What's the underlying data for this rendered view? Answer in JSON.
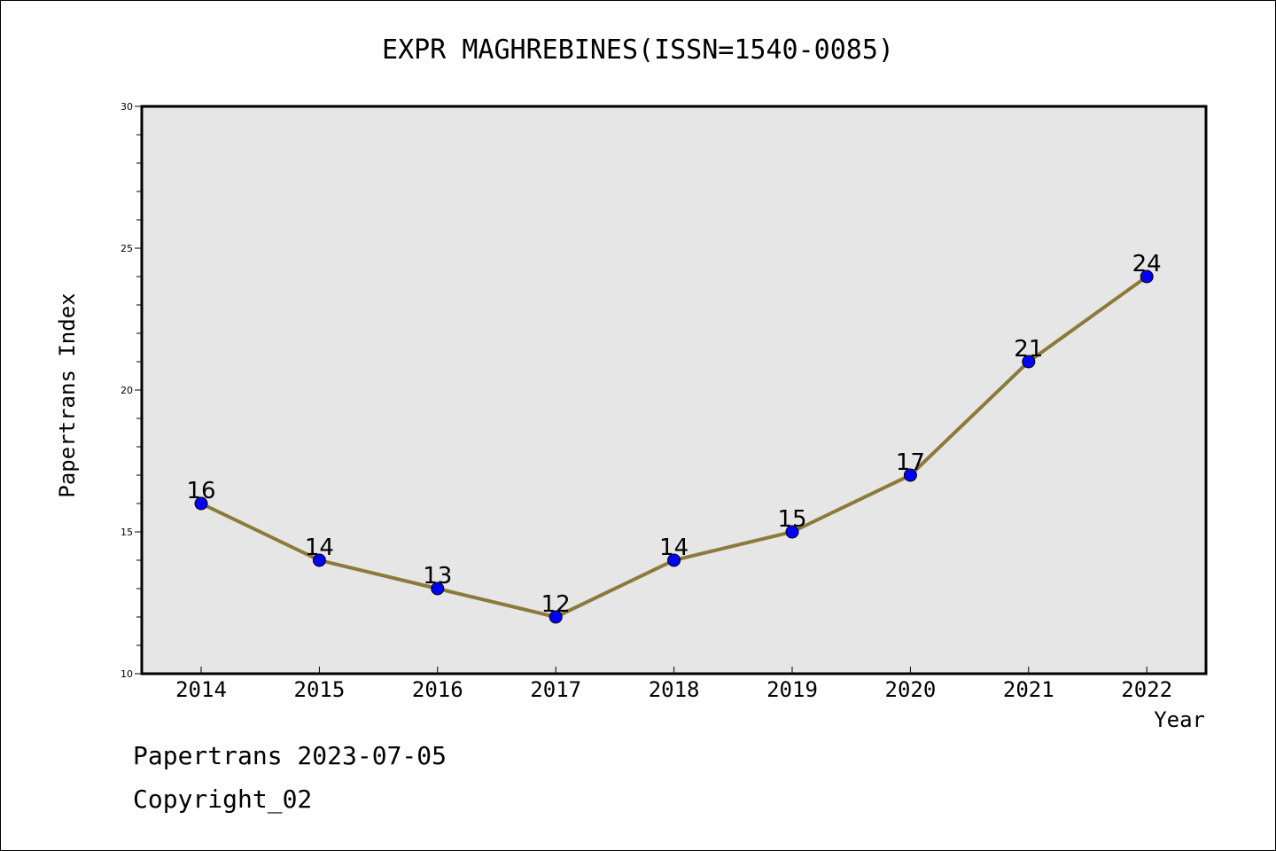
{
  "chart_data": {
    "type": "line",
    "title": "EXPR MAGHREBINES(ISSN=1540-0085)",
    "xlabel": "Year",
    "ylabel": "Papertrans Index",
    "categories": [
      "2014",
      "2015",
      "2016",
      "2017",
      "2018",
      "2019",
      "2020",
      "2021",
      "2022"
    ],
    "series": [
      {
        "values": [
          16,
          14,
          13,
          12,
          14,
          15,
          17,
          21,
          24
        ]
      }
    ],
    "ylim": [
      10,
      30
    ],
    "yticks": [
      10,
      15,
      20,
      25,
      30
    ],
    "grid": false,
    "colors": {
      "line": "#8b7a3a",
      "marker": "#0000ff",
      "plot_background": "#e6e6e6"
    }
  },
  "footer": {
    "line1": "Papertrans 2023-07-05",
    "line2": "Copyright_02"
  }
}
